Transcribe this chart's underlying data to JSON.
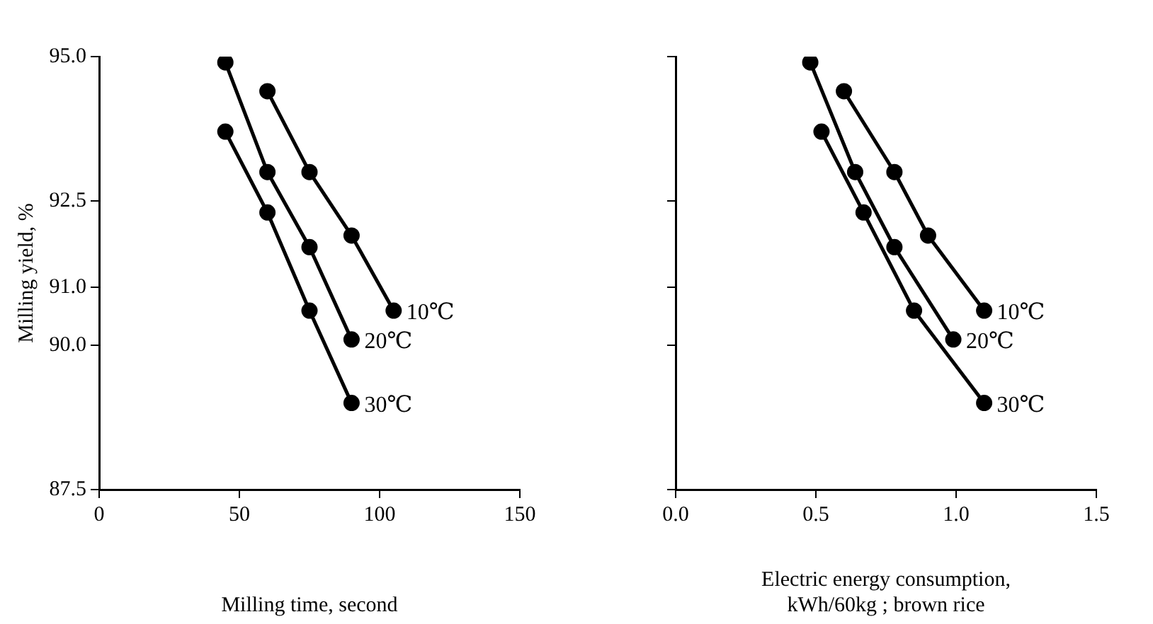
{
  "chart_data": [
    {
      "type": "line",
      "xlabel": "Milling time, second",
      "ylabel": "Milling yield, %",
      "marker": "circle",
      "line_style": "solid",
      "grid": false,
      "legend": false,
      "xlim": [
        0,
        150
      ],
      "xticks": [
        0,
        50,
        100,
        150
      ],
      "ylim": [
        87.5,
        95
      ],
      "yticks": [
        {
          "value": 87.5,
          "label": "87.5"
        },
        {
          "value": 90,
          "label": "90.0"
        },
        {
          "value": 91,
          "label": "91.0"
        },
        {
          "value": 92.5,
          "label": "92.5"
        },
        {
          "value": 95,
          "label": "95.0"
        }
      ],
      "series": [
        {
          "name": "10℃",
          "color": "#000000",
          "x": [
            60,
            75,
            90,
            105
          ],
          "values": [
            94.4,
            93.0,
            91.9,
            90.6
          ]
        },
        {
          "name": "20℃",
          "color": "#000000",
          "x": [
            45,
            60,
            75,
            90
          ],
          "values": [
            94.9,
            93.0,
            91.7,
            90.1
          ]
        },
        {
          "name": "30℃",
          "color": "#000000",
          "x": [
            45,
            60,
            75,
            90
          ],
          "values": [
            93.7,
            92.3,
            90.6,
            89.0
          ]
        }
      ]
    },
    {
      "type": "line",
      "xlabel": "Electric energy consumption,\nkWh/60kg ; brown rice",
      "marker": "circle",
      "line_style": "solid",
      "grid": false,
      "legend": false,
      "tick_labels": "x",
      "xlim": [
        0,
        1.5
      ],
      "xticks": [
        {
          "value": 0,
          "label": "0.0"
        },
        {
          "value": 0.5,
          "label": "0.5"
        },
        {
          "value": 1,
          "label": "1.0"
        },
        {
          "value": 1.5,
          "label": "1.5"
        }
      ],
      "ylim": [
        87.5,
        95
      ],
      "yticks": [
        {
          "value": 87.5,
          "label": null
        },
        {
          "value": 90,
          "label": null
        },
        {
          "value": 91,
          "label": null
        },
        {
          "value": 92.5,
          "label": null
        },
        {
          "value": 95,
          "label": null
        }
      ],
      "series": [
        {
          "name": "10℃",
          "color": "#000000",
          "x": [
            0.6,
            0.78,
            0.9,
            1.1
          ],
          "values": [
            94.4,
            93.0,
            91.9,
            90.6
          ]
        },
        {
          "name": "20℃",
          "color": "#000000",
          "x": [
            0.48,
            0.64,
            0.78,
            0.99
          ],
          "values": [
            94.9,
            93.0,
            91.7,
            90.1
          ]
        },
        {
          "name": "30℃",
          "color": "#000000",
          "x": [
            0.52,
            0.67,
            0.85,
            1.1
          ],
          "values": [
            93.7,
            92.3,
            90.6,
            89.0
          ]
        }
      ]
    }
  ]
}
